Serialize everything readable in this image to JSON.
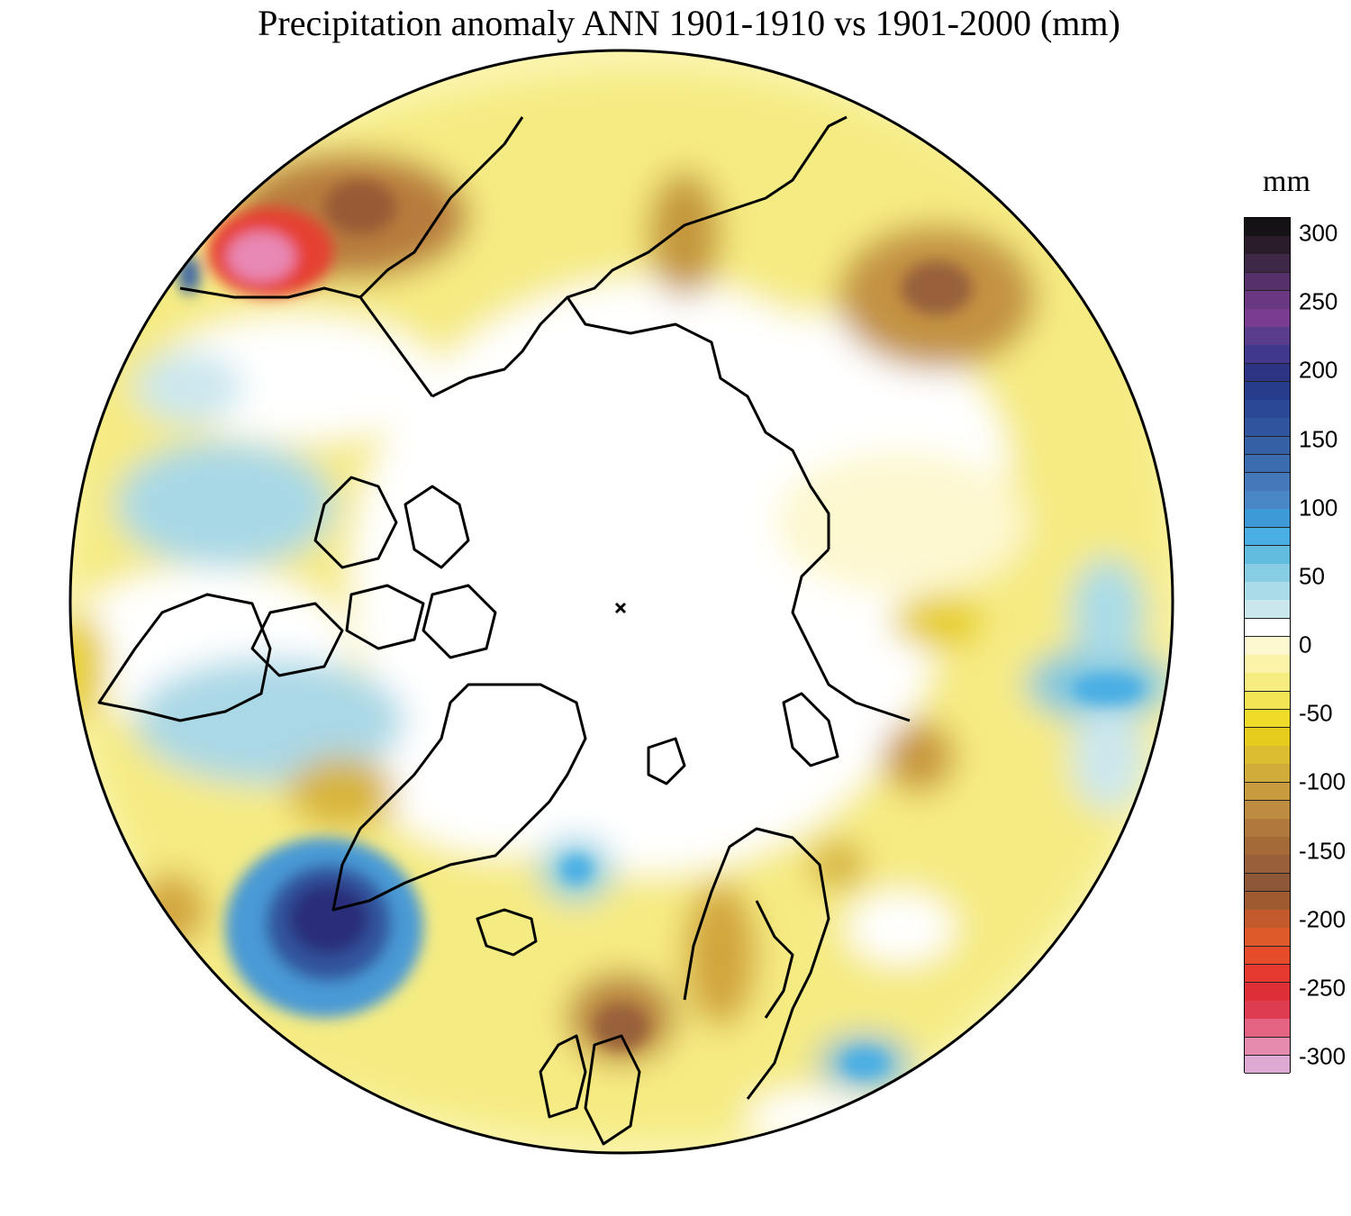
{
  "title": "Precipitation anomaly ANN 1901-1910 vs 1901-2000 (mm)",
  "colorbar": {
    "unit": "mm",
    "min": -300,
    "max": 300,
    "tick_labels": [
      "300",
      "250",
      "200",
      "150",
      "100",
      "50",
      "0",
      "-50",
      "-100",
      "-150",
      "-200",
      "-250",
      "-300"
    ],
    "tick_values": [
      300,
      250,
      200,
      150,
      100,
      50,
      0,
      -50,
      -100,
      -150,
      -200,
      -250,
      -300
    ],
    "colors_top_to_bottom": [
      "#141214",
      "#2a1c2a",
      "#3e2848",
      "#55306a",
      "#6a3882",
      "#7a3c8e",
      "#5a3c8c",
      "#40388a",
      "#2e3484",
      "#283c8c",
      "#2a4896",
      "#30549e",
      "#3660a6",
      "#3c6cb0",
      "#4478ba",
      "#4886c6",
      "#3e9ad6",
      "#48aee4",
      "#62bcdf",
      "#86cde3",
      "#a9dbe8",
      "#cbe7ee",
      "#ffffff",
      "#fdf8d0",
      "#faf3a8",
      "#f6ec80",
      "#f2e454",
      "#efdc2a",
      "#e6cc1c",
      "#dcbc30",
      "#d2ac3a",
      "#c89c3e",
      "#be8c40",
      "#b0783c",
      "#a46a38",
      "#98603a",
      "#8e5838",
      "#a05a30",
      "#c25a2c",
      "#de5a2a",
      "#e64c2a",
      "#e63a30",
      "#de2e36",
      "#de3c50",
      "#e46282",
      "#e68aae",
      "#dcaad2"
    ]
  },
  "map": {
    "projection": "north-polar-stereographic",
    "variable": "precipitation anomaly",
    "colors": {
      "background": "#fbf5b0",
      "coast": "#000000",
      "wet_strong": "#2c2f7a",
      "dry_strong": "#8a5a2a",
      "extreme_dry": "#e43a34"
    }
  }
}
